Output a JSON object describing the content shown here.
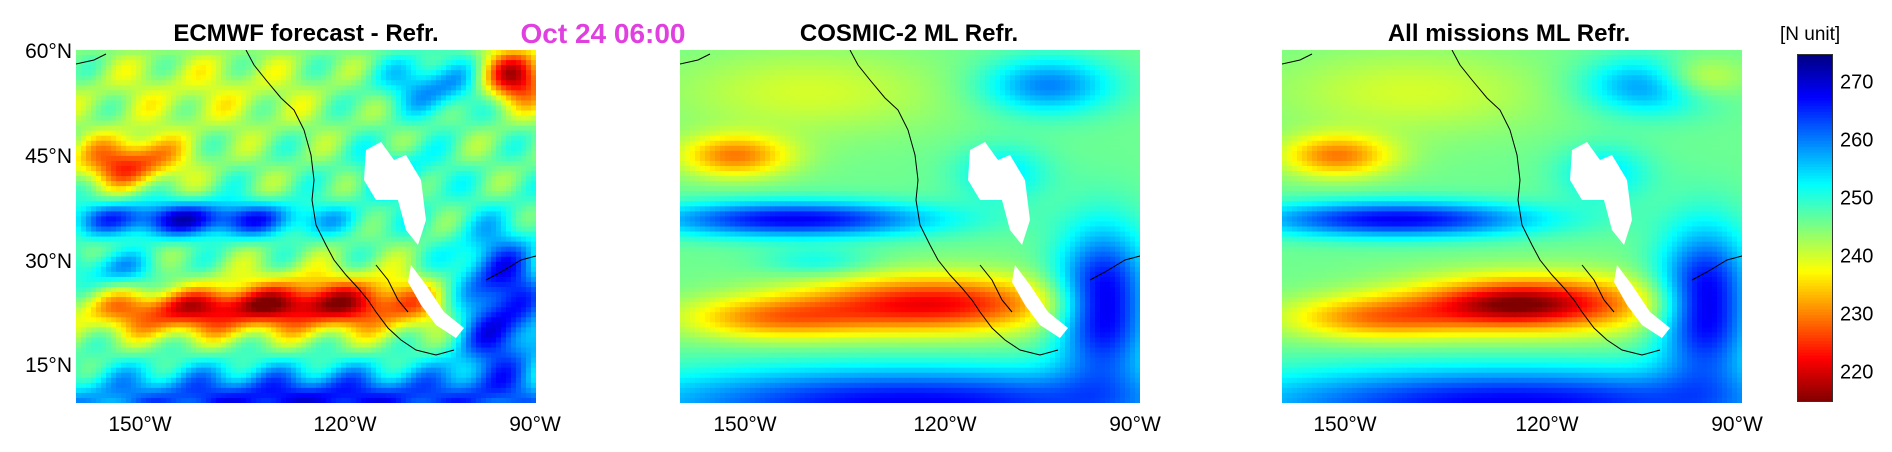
{
  "timestamp": "Oct 24 06:00",
  "colors": {
    "timestamp": "#e040e0",
    "land_mask": "#ffffff",
    "coast": "#000000"
  },
  "colorbar": {
    "unit_label": "[N unit]",
    "range": [
      215,
      275
    ],
    "ticks": [
      "270",
      "260",
      "250",
      "240",
      "230",
      "220"
    ],
    "tick_values": [
      270,
      260,
      250,
      240,
      230,
      220
    ],
    "colormap": "jet-reversed"
  },
  "yticks": [
    "60°N",
    "45°N",
    "30°N",
    "15°N"
  ],
  "chart_data": [
    {
      "type": "heatmap",
      "title": "ECMWF forecast - Refr.",
      "xlabel": "",
      "ylabel": "",
      "xlim": [
        -165,
        -85
      ],
      "ylim": [
        10,
        60
      ],
      "xticks": [
        "150°W",
        "120°W",
        "90°W"
      ],
      "xtick_values": [
        -150,
        -120,
        -90
      ],
      "ytick_values": [
        60,
        45,
        30,
        15
      ],
      "field": "forecast"
    },
    {
      "type": "heatmap",
      "title": "COSMIC-2 ML Refr.",
      "xlabel": "",
      "ylabel": "",
      "xlim": [
        -165,
        -85
      ],
      "ylim": [
        10,
        60
      ],
      "xticks": [
        "150°W",
        "120°W",
        "90°W"
      ],
      "xtick_values": [
        -150,
        -120,
        -90
      ],
      "field": "cosmic"
    },
    {
      "type": "heatmap",
      "title": "All missions ML Refr.",
      "xlabel": "",
      "ylabel": "",
      "xlim": [
        -165,
        -85
      ],
      "ylim": [
        10,
        60
      ],
      "xticks": [
        "150°W",
        "120°W",
        "90°W"
      ],
      "xtick_values": [
        -150,
        -120,
        -90
      ],
      "field": "all"
    }
  ]
}
